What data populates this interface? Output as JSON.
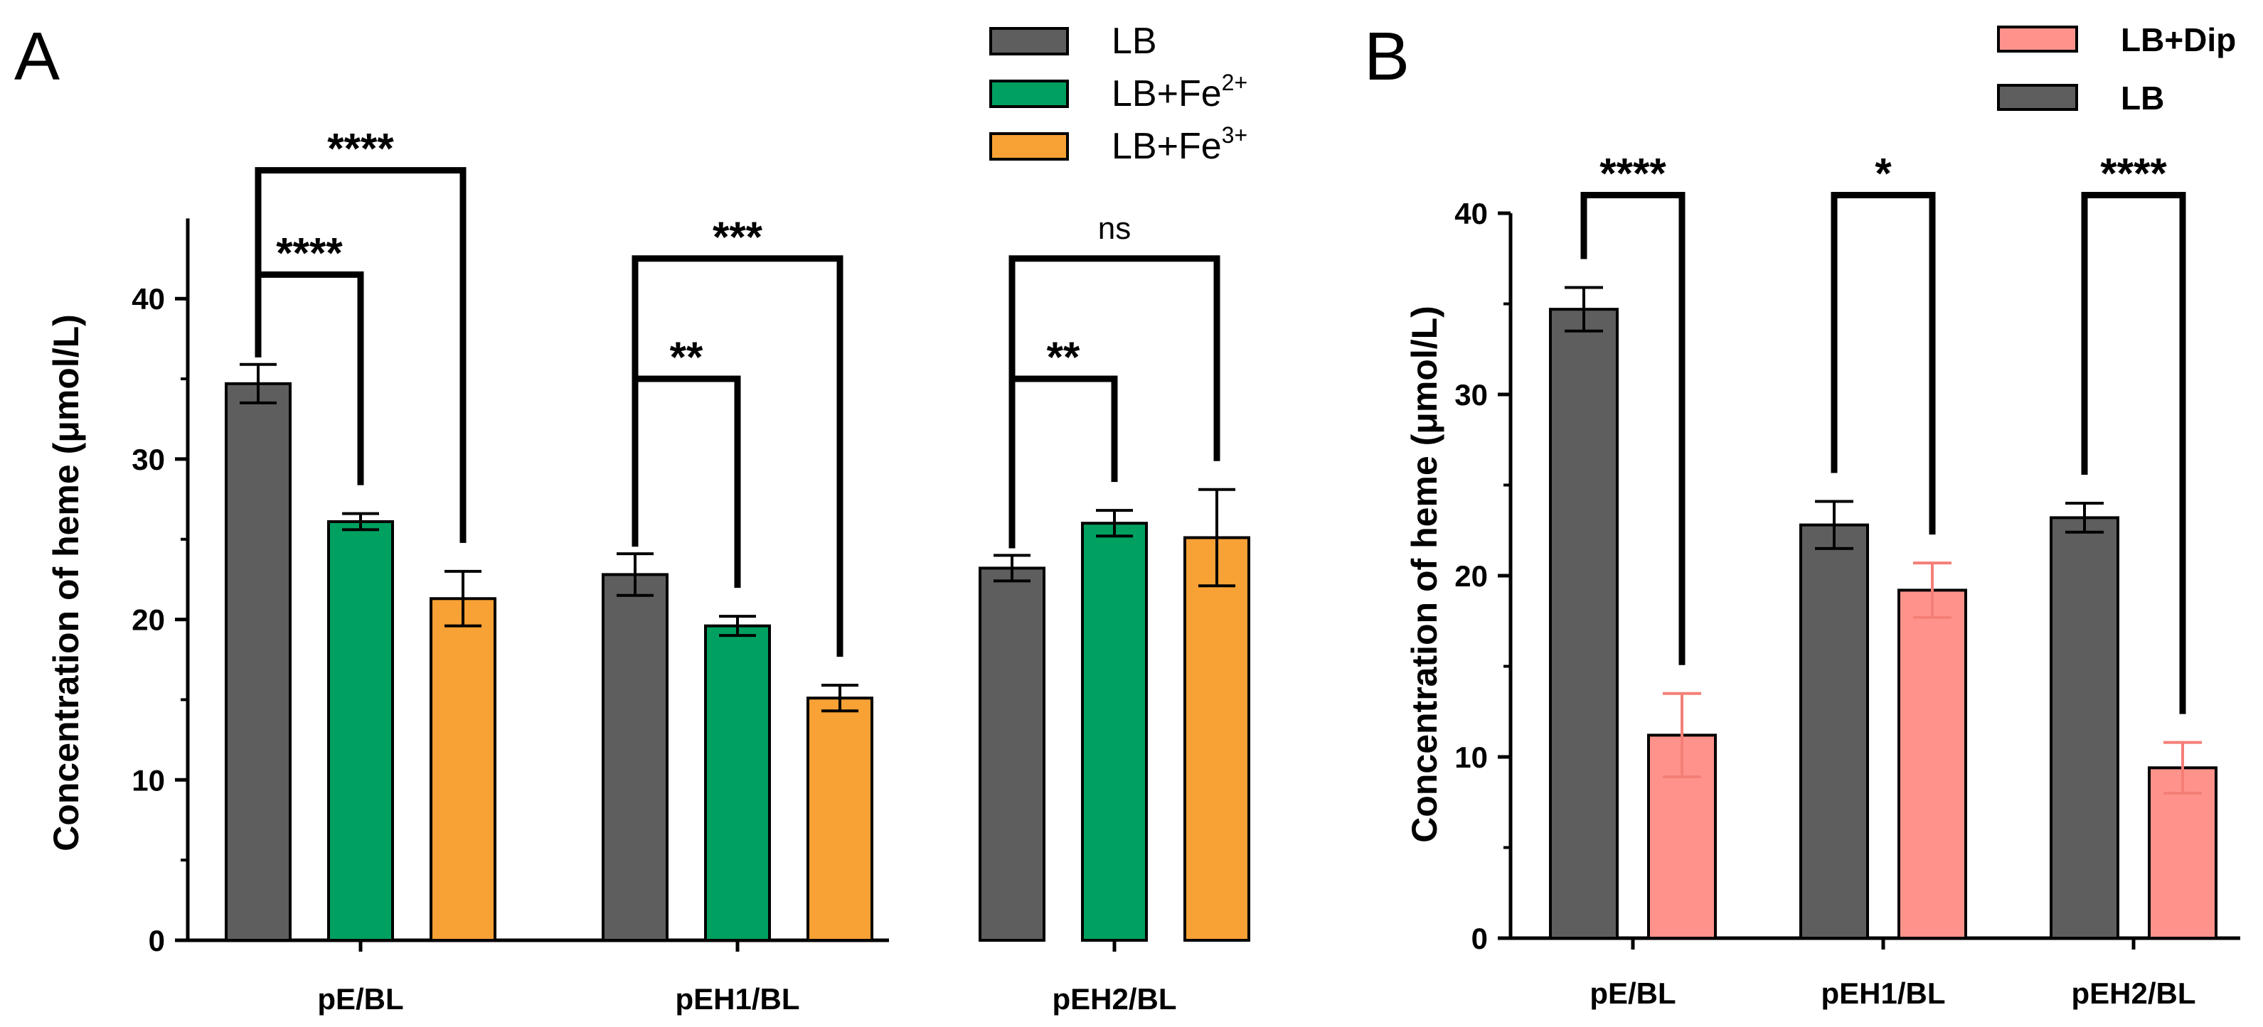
{
  "colors": {
    "LB": "#5e5e5e",
    "LB+Fe2+": "#00a060",
    "LB+Fe3+": "#f8a135",
    "LB+Dip": "#ff938c",
    "LB+Dip_err": "#f47f77"
  },
  "panels": {
    "A": {
      "letter": "A"
    },
    "B": {
      "letter": "B"
    }
  },
  "chart_data": [
    {
      "panel": "A",
      "type": "bar",
      "ylabel": "Concentration of heme (μmol/L)",
      "ylim": [
        0,
        45
      ],
      "yticks": [
        0,
        10,
        20,
        30,
        40
      ],
      "categories": [
        "pE/BL",
        "pEH1/BL",
        "pEH2/BL"
      ],
      "legend": {
        "placement": "top-right",
        "entries": [
          {
            "key": "LB",
            "text": "LB",
            "sup": ""
          },
          {
            "key": "LB+Fe2+",
            "text": "LB+Fe",
            "sup": "2+"
          },
          {
            "key": "LB+Fe3+",
            "text": "LB+Fe",
            "sup": "3+"
          }
        ]
      },
      "series": [
        {
          "name": "LB",
          "values": [
            34.7,
            22.8,
            23.2
          ],
          "errors": [
            1.2,
            1.3,
            0.8
          ]
        },
        {
          "name": "LB+Fe2+",
          "values": [
            26.1,
            19.6,
            26.0
          ],
          "errors": [
            0.5,
            0.6,
            0.8
          ]
        },
        {
          "name": "LB+Fe3+",
          "values": [
            21.3,
            15.1,
            25.1
          ],
          "errors": [
            1.7,
            0.8,
            3.0
          ]
        }
      ],
      "significance": [
        {
          "category": 0,
          "from": 0,
          "to": 2,
          "label": "****",
          "level": 48
        },
        {
          "category": 0,
          "from": 0,
          "to": 1,
          "label": "****",
          "level": 41.5
        },
        {
          "category": 1,
          "from": 0,
          "to": 2,
          "label": "***",
          "level": 42.5
        },
        {
          "category": 1,
          "from": 0,
          "to": 1,
          "label": "**",
          "level": 35
        },
        {
          "category": 2,
          "from": 0,
          "to": 2,
          "label": "ns",
          "level": 42.5
        },
        {
          "category": 2,
          "from": 0,
          "to": 1,
          "label": "**",
          "level": 35
        }
      ]
    },
    {
      "panel": "B",
      "type": "bar",
      "ylabel": "Concentration of heme (μmol/L)",
      "ylim": [
        0,
        40
      ],
      "yticks": [
        0,
        10,
        20,
        30,
        40
      ],
      "categories": [
        "pE/BL",
        "pEH1/BL",
        "pEH2/BL"
      ],
      "legend": {
        "placement": "top-right",
        "entries": [
          {
            "key": "LB+Dip",
            "text": "LB+Dip",
            "sup": ""
          },
          {
            "key": "LB",
            "text": "LB",
            "sup": ""
          }
        ]
      },
      "series": [
        {
          "name": "LB",
          "values": [
            34.7,
            22.8,
            23.2
          ],
          "errors": [
            1.2,
            1.3,
            0.8
          ]
        },
        {
          "name": "LB+Dip",
          "values": [
            11.2,
            19.2,
            9.4
          ],
          "errors": [
            2.3,
            1.5,
            1.4
          ]
        }
      ],
      "significance": [
        {
          "category": 0,
          "from": 0,
          "to": 1,
          "label": "****",
          "level": 41
        },
        {
          "category": 1,
          "from": 0,
          "to": 1,
          "label": "*",
          "level": 41
        },
        {
          "category": 2,
          "from": 0,
          "to": 1,
          "label": "****",
          "level": 41
        }
      ]
    }
  ]
}
